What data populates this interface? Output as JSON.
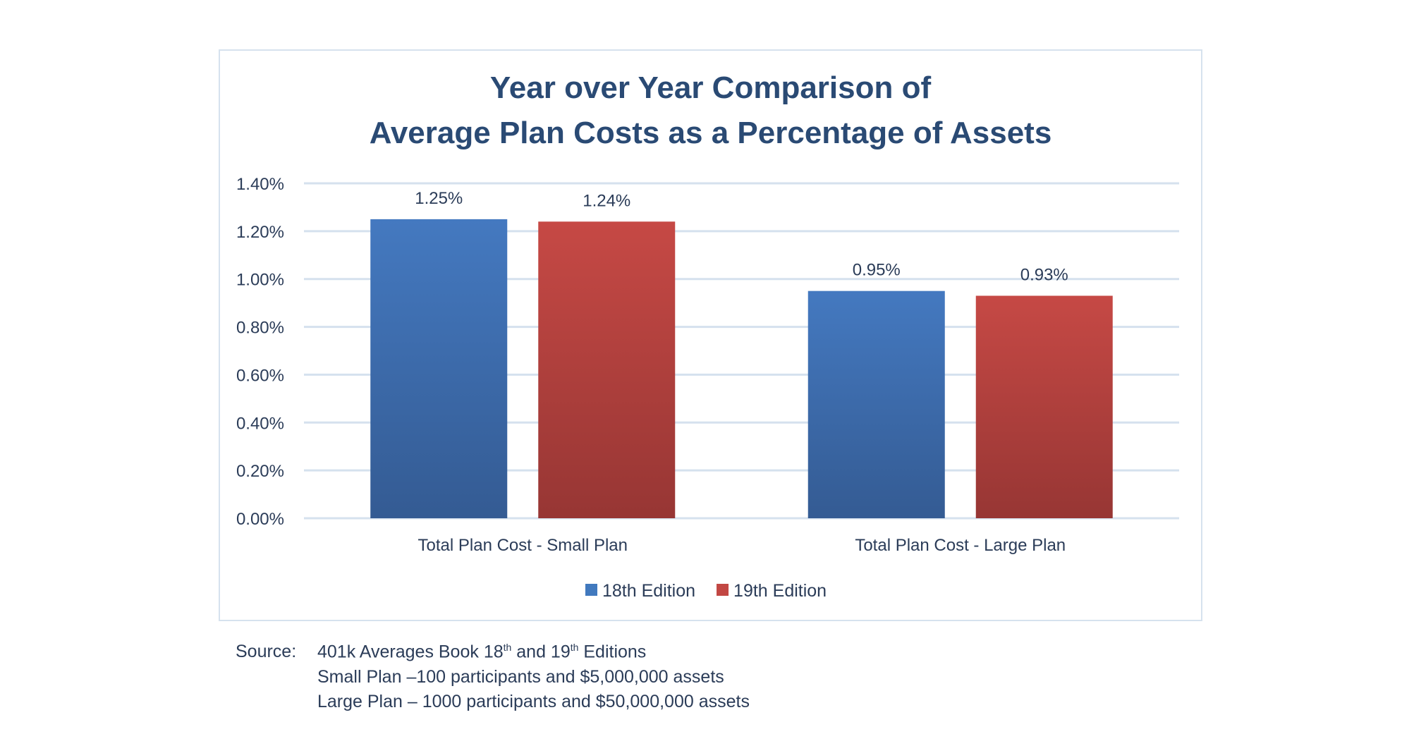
{
  "chart_data": {
    "type": "bar",
    "title_lines": [
      "Year over Year Comparison of",
      "Average Plan Costs as a Percentage of Assets"
    ],
    "categories": [
      "Total Plan Cost - Small Plan",
      "Total Plan Cost - Large Plan"
    ],
    "series": [
      {
        "name": "18th Edition",
        "values": [
          1.25,
          0.95
        ],
        "labels": [
          "1.25%",
          "0.95%"
        ],
        "color": "#4179be"
      },
      {
        "name": "19th Edition",
        "values": [
          1.24,
          0.93
        ],
        "labels": [
          "1.24%",
          "0.93%"
        ],
        "color": "#c24743"
      }
    ],
    "ylim": [
      0,
      1.4
    ],
    "yticks": [
      0,
      0.2,
      0.4,
      0.6,
      0.8,
      1.0,
      1.2,
      1.4
    ],
    "ytick_labels": [
      "0.00%",
      "0.20%",
      "0.40%",
      "0.60%",
      "0.80%",
      "1.00%",
      "1.20%",
      "1.40%"
    ],
    "grid": true,
    "legend_position": "bottom"
  },
  "source": {
    "label": "Source:",
    "line1_a": "401k Averages Book 18",
    "line1_sup1": "th",
    "line1_b": " and 19",
    "line1_sup2": "th",
    "line1_c": " Editions",
    "line2": "Small Plan –100 participants and $5,000,000 assets",
    "line3": "Large Plan – 1000 participants and $50,000,000 assets"
  }
}
